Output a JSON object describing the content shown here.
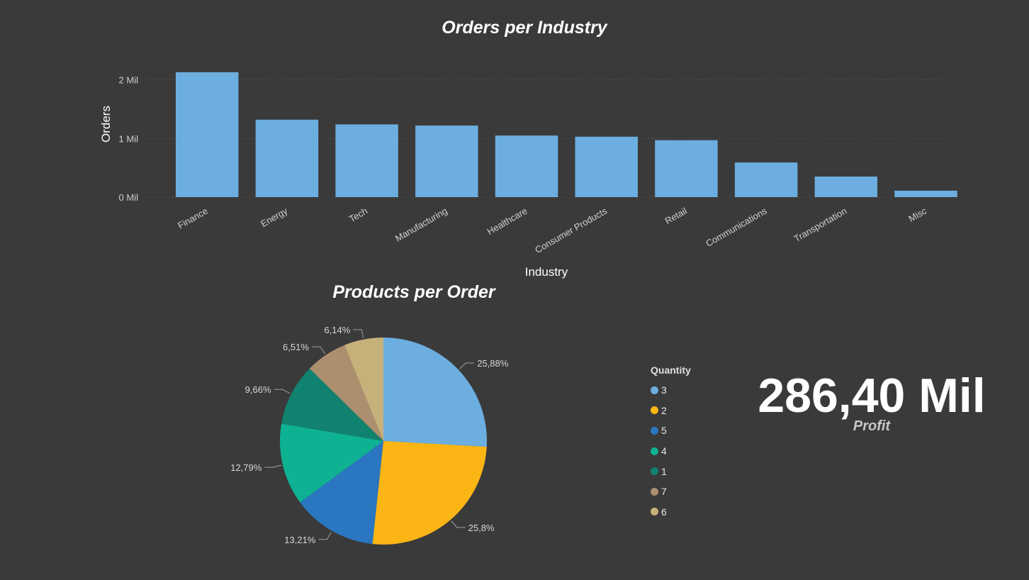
{
  "chart_data": [
    {
      "type": "bar",
      "title": "Orders per Industry",
      "xlabel": "Industry",
      "ylabel": "Orders",
      "categories": [
        "Finance",
        "Energy",
        "Tech",
        "Manufacturing",
        "Healthcare",
        "Consumer Products",
        "Retail",
        "Communications",
        "Transportation",
        "Misc"
      ],
      "values": [
        2.13,
        1.32,
        1.24,
        1.22,
        1.05,
        1.03,
        0.97,
        0.59,
        0.35,
        0.11
      ],
      "ylim": [
        0,
        2.2
      ],
      "yticks": [
        0,
        1,
        2
      ],
      "ytick_labels": [
        "0 Mil",
        "1 Mil",
        "2 Mil"
      ],
      "bar_color": "#6caee0",
      "grid": true
    },
    {
      "type": "pie",
      "title": "Products per Order",
      "legend_title": "Quantity",
      "legend_position": "right",
      "labels": [
        "3",
        "2",
        "5",
        "4",
        "1",
        "7",
        "6"
      ],
      "values": [
        25.88,
        25.8,
        13.21,
        12.79,
        9.66,
        6.51,
        6.14
      ],
      "value_labels": [
        "25,88%",
        "25,8%",
        "13,21%",
        "12,79%",
        "9,66%",
        "6,51%",
        "6,14%"
      ],
      "colors": [
        "#6caee0",
        "#fbb616",
        "#2a76c0",
        "#0fb193",
        "#128270",
        "#ac8f6f",
        "#c7b17b"
      ]
    }
  ],
  "kpi": {
    "value": "286,40 Mil",
    "label": "Profit"
  }
}
